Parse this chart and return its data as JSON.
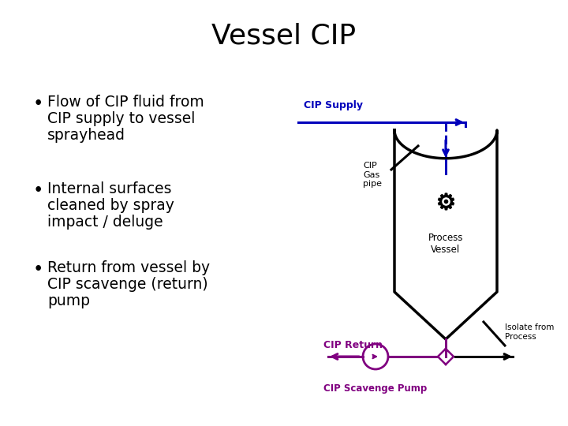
{
  "title": "Vessel CIP",
  "title_fontsize": 26,
  "background_color": "#ffffff",
  "bullet_lines": [
    [
      "Flow of CIP fluid from",
      "CIP supply to vessel",
      "sprayhead"
    ],
    [
      "Internal surfaces",
      "cleaned by spray",
      "impact / deluge"
    ],
    [
      "Return from vessel by",
      "CIP scavenge (return)",
      "pump"
    ]
  ],
  "bullet_fontsize": 13.5,
  "blue_color": "#0000bb",
  "purple_color": "#800080",
  "black_color": "#000000",
  "cip_supply_label": "CIP Supply",
  "cip_gas_pipe_label": "CIP\nGas\npipe",
  "process_vessel_label": "Process\nVessel",
  "isolate_from_process_label": "Isolate from\nProcess",
  "cip_return_label": "CIP Return",
  "cip_scavenge_pump_label": "CIP Scavenge Pump"
}
